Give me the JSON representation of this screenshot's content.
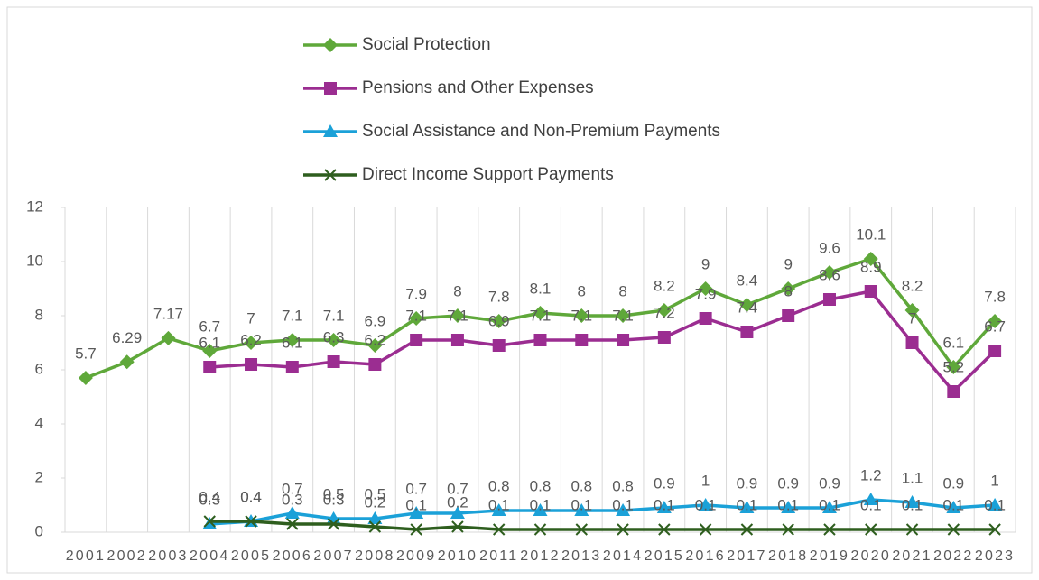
{
  "chart_data": {
    "type": "line",
    "categories": [
      "2001",
      "2002",
      "2003",
      "2004",
      "2005",
      "2006",
      "2007",
      "2008",
      "2009",
      "2010",
      "2011",
      "2012",
      "2013",
      "2014",
      "2015",
      "2016",
      "2017",
      "2018",
      "2019",
      "2020",
      "2021",
      "2022",
      "2023"
    ],
    "series": [
      {
        "name": "Social Protection",
        "color": "#5fa83a",
        "marker": "diamond",
        "values": [
          5.7,
          6.29,
          7.17,
          6.7,
          7,
          7.1,
          7.1,
          6.9,
          7.9,
          8,
          7.8,
          8.1,
          8,
          8,
          8.2,
          9,
          8.4,
          9,
          9.6,
          10.1,
          8.2,
          6.1,
          7.8
        ]
      },
      {
        "name": "Pensions and Other Expenses",
        "color": "#9b2d91",
        "marker": "square",
        "values": [
          null,
          null,
          null,
          6.1,
          6.2,
          6.1,
          6.3,
          6.2,
          7.1,
          7.1,
          6.9,
          7.1,
          7.1,
          7.1,
          7.2,
          7.9,
          7.4,
          8,
          8.6,
          8.9,
          7,
          5.2,
          6.7
        ]
      },
      {
        "name": "Social Assistance and Non-Premium Payments",
        "color": "#1ba1d8",
        "marker": "triangle",
        "values": [
          null,
          null,
          null,
          0.3,
          0.4,
          0.7,
          0.5,
          0.5,
          0.7,
          0.7,
          0.8,
          0.8,
          0.8,
          0.8,
          0.9,
          1,
          0.9,
          0.9,
          0.9,
          1.2,
          1.1,
          0.9,
          1
        ]
      },
      {
        "name": "Direct Income Support Payments",
        "color": "#2e5e1e",
        "marker": "x",
        "values": [
          null,
          null,
          null,
          0.4,
          0.4,
          0.3,
          0.3,
          0.2,
          0.1,
          0.2,
          0.1,
          0.1,
          0.1,
          0.1,
          0.1,
          0.1,
          0.1,
          0.1,
          0.1,
          0.1,
          0.1,
          0.1,
          0.1
        ]
      }
    ],
    "ylim": [
      0,
      12
    ],
    "yticks": [
      0,
      2,
      4,
      6,
      8,
      10,
      12
    ],
    "grid": "vertical"
  }
}
